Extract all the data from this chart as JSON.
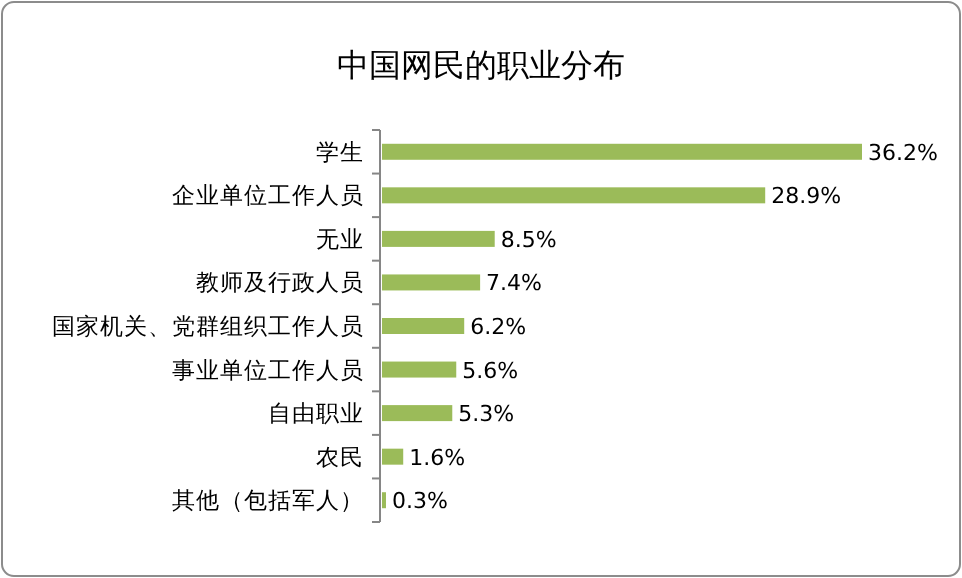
{
  "chart_data": {
    "type": "bar",
    "orientation": "horizontal",
    "title": "中国网民的职业分布",
    "categories": [
      "学生",
      "企业单位工作人员",
      "无业",
      "教师及行政人员",
      "国家机关、党群组织工作人员",
      "事业单位工作人员",
      "自由职业",
      "农民",
      "其他（包括军人）"
    ],
    "values": [
      36.2,
      28.9,
      8.5,
      7.4,
      6.2,
      5.6,
      5.3,
      1.6,
      0.3
    ],
    "value_labels": [
      "36.2%",
      "28.9%",
      "8.5%",
      "7.4%",
      "6.2%",
      "5.6%",
      "5.3%",
      "1.6%",
      "0.3%"
    ],
    "color": "#9bbb59"
  }
}
